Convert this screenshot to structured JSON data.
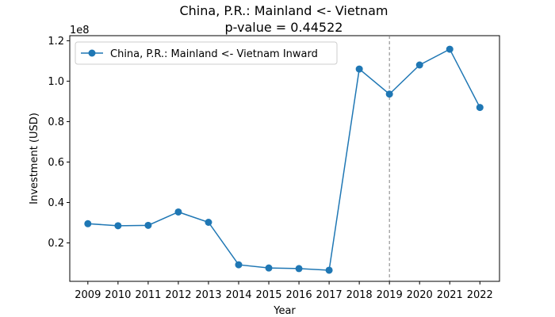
{
  "chart_data": {
    "type": "line",
    "title": "China, P.R.: Mainland <- Vietnam",
    "subtitle": "p-value = 0.44522",
    "xlabel": "Year",
    "ylabel": "Investment (USD)",
    "y_multiplier_label": "1e8",
    "x": [
      2009,
      2010,
      2011,
      2012,
      2013,
      2014,
      2015,
      2016,
      2017,
      2018,
      2019,
      2020,
      2021,
      2022
    ],
    "series": [
      {
        "name": "China, P.R.: Mainland <- Vietnam Inward",
        "color": "#1f77b4",
        "values": [
          29500000,
          28500000,
          28700000,
          35300000,
          30200000,
          9200000,
          7600000,
          7300000,
          6500000,
          106000000,
          93600000,
          108000000,
          115800000,
          87000000
        ]
      }
    ],
    "xlim": [
      2008.4,
      2022.65
    ],
    "ylim": [
      1000000,
      122500000
    ],
    "yticks": [
      20000000,
      40000000,
      60000000,
      80000000,
      100000000,
      120000000
    ],
    "ytick_labels": [
      "0.2",
      "0.4",
      "0.6",
      "0.8",
      "1.0",
      "1.2"
    ],
    "vline_x": 2019,
    "vline_color": "#808080",
    "grid": false,
    "legend_position": "top-left"
  }
}
